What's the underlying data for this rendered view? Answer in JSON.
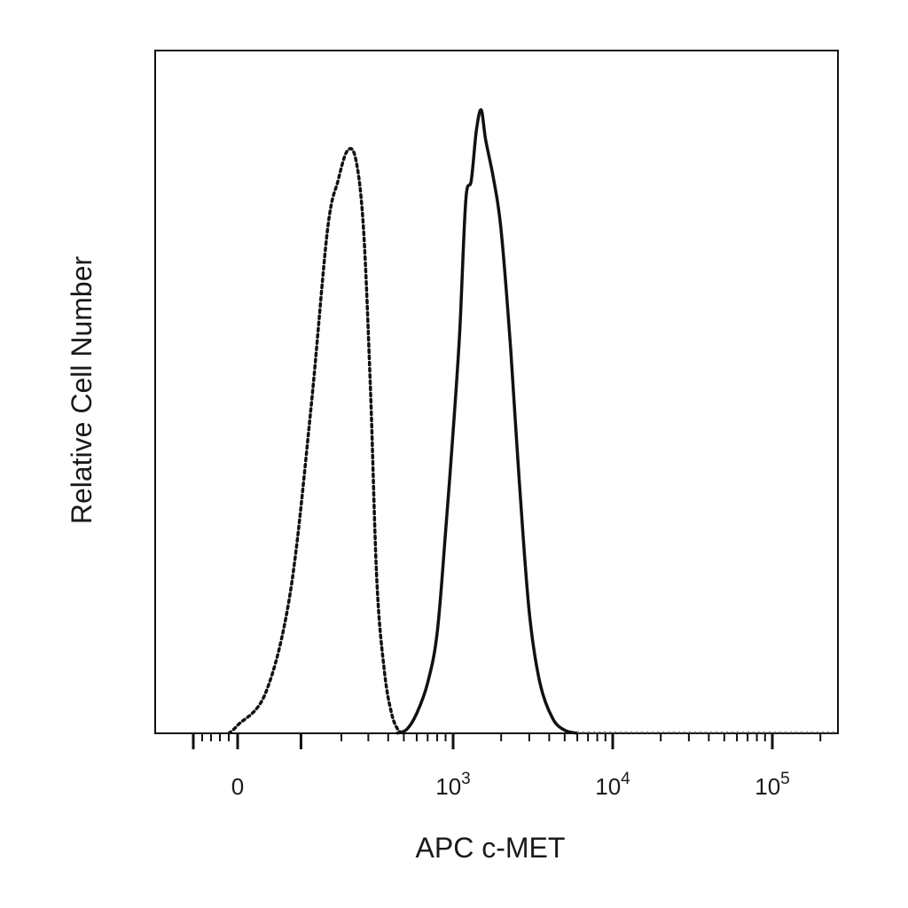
{
  "chart_data": {
    "type": "line",
    "title": "",
    "xlabel": "APC c-MET",
    "ylabel": "Relative Cell Number",
    "x_scale": "biexponential",
    "xlim": [
      -300,
      200000
    ],
    "ylim": [
      0,
      100
    ],
    "grid": false,
    "legend": "none",
    "x_ticks": [
      {
        "value": 0,
        "base": "0",
        "exp": ""
      },
      {
        "value": 1000,
        "base": "10",
        "exp": "3"
      },
      {
        "value": 10000,
        "base": "10",
        "exp": "4"
      },
      {
        "value": 100000,
        "base": "10",
        "exp": "5"
      }
    ],
    "series": [
      {
        "style": "dotted",
        "color": "#111111",
        "x": [
          -50,
          0,
          40,
          80,
          120,
          160,
          190,
          220,
          250,
          280,
          310,
          340,
          380,
          420,
          460,
          500
        ],
        "y": [
          0,
          1.3,
          6.5,
          22.6,
          51.6,
          80.6,
          88.7,
          93.5,
          91.9,
          80.6,
          54.8,
          24.2,
          9.7,
          3.2,
          0.6,
          0
        ]
      },
      {
        "style": "solid",
        "color": "#111111",
        "x": [
          450,
          520,
          600,
          700,
          800,
          900,
          1000,
          1100,
          1200,
          1300,
          1400,
          1500,
          1600,
          1800,
          2000,
          2300,
          2600,
          3000,
          3500,
          4200,
          5000,
          6000
        ],
        "y": [
          0,
          0.6,
          3.2,
          8.1,
          16.1,
          32.3,
          48.4,
          64.5,
          85.5,
          88.7,
          96.8,
          100,
          95.2,
          88.7,
          80.6,
          61.3,
          40.3,
          19.4,
          8.1,
          2.4,
          0.5,
          0
        ]
      }
    ]
  }
}
